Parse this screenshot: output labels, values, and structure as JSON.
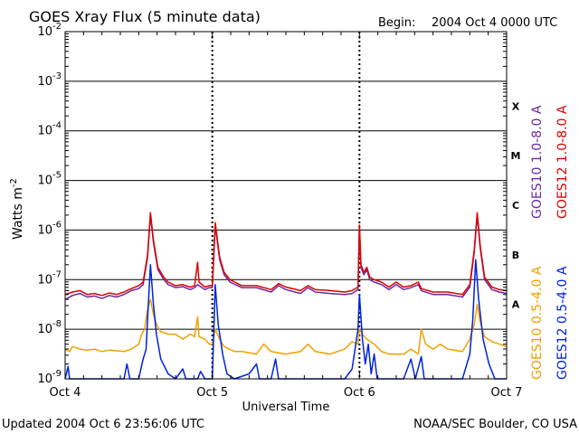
{
  "chart_data": {
    "type": "line",
    "title": "GOES Xray Flux (5 minute data)",
    "begin_label": "Begin:",
    "begin_value": "2004 Oct 4 0000 UTC",
    "xlabel": "Universal Time",
    "ylabel_base": "Watts m",
    "ylabel_exp": "-2",
    "yscale": "log",
    "ylim": [
      1e-09,
      0.01
    ],
    "xlim_days": [
      0,
      3
    ],
    "x_ticks": [
      {
        "day": 0,
        "label": "Oct 4"
      },
      {
        "day": 1,
        "label": "Oct 5"
      },
      {
        "day": 2,
        "label": "Oct 6"
      },
      {
        "day": 3,
        "label": "Oct 7"
      }
    ],
    "y_ticks": [
      {
        "exp": -2,
        "label": "-2"
      },
      {
        "exp": -3,
        "label": "-3"
      },
      {
        "exp": -4,
        "label": "-4"
      },
      {
        "exp": -5,
        "label": "-5"
      },
      {
        "exp": -6,
        "label": "-6"
      },
      {
        "exp": -7,
        "label": "-7"
      },
      {
        "exp": -8,
        "label": "-8"
      },
      {
        "exp": -9,
        "label": "-9"
      }
    ],
    "y_tick_base": "10",
    "flare_classes": [
      {
        "label": "X",
        "exp": -3.5
      },
      {
        "label": "M",
        "exp": -4.5
      },
      {
        "label": "C",
        "exp": -5.5
      },
      {
        "label": "B",
        "exp": -6.5
      },
      {
        "label": "A",
        "exp": -7.5
      }
    ],
    "grid": "horizontal lines at each decade, dashed day markers",
    "series": [
      {
        "name": "GOES12 1.0-8.0 A",
        "color": "#dd0000",
        "points": [
          [
            0.0,
            -7.3
          ],
          [
            0.05,
            -7.25
          ],
          [
            0.1,
            -7.22
          ],
          [
            0.15,
            -7.3
          ],
          [
            0.2,
            -7.28
          ],
          [
            0.25,
            -7.32
          ],
          [
            0.3,
            -7.27
          ],
          [
            0.35,
            -7.3
          ],
          [
            0.4,
            -7.25
          ],
          [
            0.45,
            -7.18
          ],
          [
            0.5,
            -7.12
          ],
          [
            0.53,
            -7.05
          ],
          [
            0.56,
            -6.5
          ],
          [
            0.58,
            -5.65
          ],
          [
            0.6,
            -6.2
          ],
          [
            0.63,
            -6.75
          ],
          [
            0.67,
            -6.95
          ],
          [
            0.7,
            -7.05
          ],
          [
            0.75,
            -7.12
          ],
          [
            0.8,
            -7.1
          ],
          [
            0.85,
            -7.15
          ],
          [
            0.88,
            -7.12
          ],
          [
            0.9,
            -6.65
          ],
          [
            0.91,
            -7.05
          ],
          [
            0.95,
            -7.15
          ],
          [
            0.98,
            -7.12
          ],
          [
            1.0,
            -7.12
          ],
          [
            1.02,
            -5.85
          ],
          [
            1.05,
            -6.55
          ],
          [
            1.08,
            -6.85
          ],
          [
            1.12,
            -7.0
          ],
          [
            1.2,
            -7.12
          ],
          [
            1.3,
            -7.12
          ],
          [
            1.4,
            -7.2
          ],
          [
            1.45,
            -7.08
          ],
          [
            1.5,
            -7.15
          ],
          [
            1.6,
            -7.22
          ],
          [
            1.65,
            -7.12
          ],
          [
            1.7,
            -7.2
          ],
          [
            1.8,
            -7.22
          ],
          [
            1.9,
            -7.25
          ],
          [
            1.95,
            -7.22
          ],
          [
            1.99,
            -7.15
          ],
          [
            2.0,
            -5.9
          ],
          [
            2.01,
            -6.7
          ],
          [
            2.03,
            -6.85
          ],
          [
            2.05,
            -6.75
          ],
          [
            2.07,
            -6.95
          ],
          [
            2.1,
            -7.0
          ],
          [
            2.15,
            -7.05
          ],
          [
            2.2,
            -7.15
          ],
          [
            2.25,
            -7.05
          ],
          [
            2.3,
            -7.15
          ],
          [
            2.35,
            -7.12
          ],
          [
            2.4,
            -7.05
          ],
          [
            2.42,
            -7.18
          ],
          [
            2.5,
            -7.25
          ],
          [
            2.6,
            -7.25
          ],
          [
            2.7,
            -7.3
          ],
          [
            2.75,
            -7.1
          ],
          [
            2.78,
            -6.4
          ],
          [
            2.8,
            -5.65
          ],
          [
            2.82,
            -6.3
          ],
          [
            2.85,
            -6.95
          ],
          [
            2.9,
            -7.15
          ],
          [
            2.95,
            -7.2
          ],
          [
            3.0,
            -7.22
          ]
        ]
      },
      {
        "name": "GOES10 1.0-8.0 A",
        "color": "#6a2aa0",
        "points": [
          [
            0.0,
            -7.4
          ],
          [
            0.05,
            -7.32
          ],
          [
            0.1,
            -7.28
          ],
          [
            0.15,
            -7.35
          ],
          [
            0.2,
            -7.33
          ],
          [
            0.25,
            -7.38
          ],
          [
            0.3,
            -7.32
          ],
          [
            0.35,
            -7.35
          ],
          [
            0.4,
            -7.3
          ],
          [
            0.45,
            -7.22
          ],
          [
            0.5,
            -7.18
          ],
          [
            0.53,
            -7.1
          ],
          [
            0.56,
            -6.55
          ],
          [
            0.58,
            -5.7
          ],
          [
            0.6,
            -6.25
          ],
          [
            0.63,
            -6.8
          ],
          [
            0.67,
            -7.0
          ],
          [
            0.7,
            -7.1
          ],
          [
            0.75,
            -7.16
          ],
          [
            0.8,
            -7.14
          ],
          [
            0.85,
            -7.2
          ],
          [
            0.88,
            -7.16
          ],
          [
            0.9,
            -7.1
          ],
          [
            0.95,
            -7.2
          ],
          [
            0.98,
            -7.16
          ],
          [
            1.0,
            -7.16
          ],
          [
            1.02,
            -5.9
          ],
          [
            1.05,
            -6.6
          ],
          [
            1.08,
            -6.9
          ],
          [
            1.12,
            -7.05
          ],
          [
            1.2,
            -7.16
          ],
          [
            1.3,
            -7.16
          ],
          [
            1.4,
            -7.25
          ],
          [
            1.45,
            -7.12
          ],
          [
            1.5,
            -7.2
          ],
          [
            1.6,
            -7.28
          ],
          [
            1.65,
            -7.16
          ],
          [
            1.7,
            -7.25
          ],
          [
            1.8,
            -7.28
          ],
          [
            1.9,
            -7.3
          ],
          [
            1.95,
            -7.28
          ],
          [
            1.99,
            -7.2
          ],
          [
            2.0,
            -5.95
          ],
          [
            2.01,
            -6.75
          ],
          [
            2.03,
            -6.9
          ],
          [
            2.05,
            -6.8
          ],
          [
            2.07,
            -7.0
          ],
          [
            2.1,
            -7.05
          ],
          [
            2.15,
            -7.1
          ],
          [
            2.2,
            -7.2
          ],
          [
            2.25,
            -7.1
          ],
          [
            2.3,
            -7.2
          ],
          [
            2.35,
            -7.16
          ],
          [
            2.4,
            -7.1
          ],
          [
            2.42,
            -7.22
          ],
          [
            2.5,
            -7.3
          ],
          [
            2.6,
            -7.3
          ],
          [
            2.7,
            -7.35
          ],
          [
            2.75,
            -7.15
          ],
          [
            2.78,
            -6.45
          ],
          [
            2.8,
            -5.7
          ],
          [
            2.82,
            -6.35
          ],
          [
            2.85,
            -7.0
          ],
          [
            2.9,
            -7.2
          ],
          [
            2.95,
            -7.25
          ],
          [
            3.0,
            -7.28
          ]
        ]
      },
      {
        "name": "GOES10 0.5-4.0 A",
        "color": "#f0a000",
        "points": [
          [
            0.0,
            -8.4
          ],
          [
            0.03,
            -8.45
          ],
          [
            0.05,
            -8.35
          ],
          [
            0.1,
            -8.4
          ],
          [
            0.15,
            -8.42
          ],
          [
            0.2,
            -8.4
          ],
          [
            0.25,
            -8.45
          ],
          [
            0.3,
            -8.42
          ],
          [
            0.4,
            -8.45
          ],
          [
            0.45,
            -8.4
          ],
          [
            0.5,
            -8.3
          ],
          [
            0.52,
            -8.1
          ],
          [
            0.54,
            -8.0
          ],
          [
            0.56,
            -7.6
          ],
          [
            0.58,
            -7.4
          ],
          [
            0.6,
            -7.7
          ],
          [
            0.62,
            -7.9
          ],
          [
            0.65,
            -8.05
          ],
          [
            0.7,
            -8.1
          ],
          [
            0.75,
            -8.1
          ],
          [
            0.8,
            -8.2
          ],
          [
            0.85,
            -8.1
          ],
          [
            0.88,
            -8.15
          ],
          [
            0.9,
            -7.75
          ],
          [
            0.91,
            -8.15
          ],
          [
            0.95,
            -8.2
          ],
          [
            0.98,
            -8.3
          ],
          [
            1.0,
            -8.3
          ],
          [
            1.02,
            -8.0
          ],
          [
            1.05,
            -8.2
          ],
          [
            1.08,
            -8.35
          ],
          [
            1.15,
            -8.45
          ],
          [
            1.2,
            -8.45
          ],
          [
            1.3,
            -8.5
          ],
          [
            1.35,
            -8.3
          ],
          [
            1.4,
            -8.45
          ],
          [
            1.5,
            -8.5
          ],
          [
            1.6,
            -8.45
          ],
          [
            1.65,
            -8.3
          ],
          [
            1.7,
            -8.45
          ],
          [
            1.8,
            -8.5
          ],
          [
            1.9,
            -8.4
          ],
          [
            1.95,
            -8.25
          ],
          [
            1.99,
            -8.3
          ],
          [
            2.0,
            -8.0
          ],
          [
            2.02,
            -8.1
          ],
          [
            2.05,
            -8.2
          ],
          [
            2.1,
            -8.3
          ],
          [
            2.15,
            -8.45
          ],
          [
            2.2,
            -8.5
          ],
          [
            2.3,
            -8.5
          ],
          [
            2.35,
            -8.4
          ],
          [
            2.4,
            -8.5
          ],
          [
            2.42,
            -8.0
          ],
          [
            2.45,
            -8.3
          ],
          [
            2.5,
            -8.4
          ],
          [
            2.55,
            -8.3
          ],
          [
            2.6,
            -8.4
          ],
          [
            2.7,
            -8.45
          ],
          [
            2.75,
            -8.2
          ],
          [
            2.78,
            -7.9
          ],
          [
            2.8,
            -7.5
          ],
          [
            2.82,
            -7.85
          ],
          [
            2.85,
            -8.15
          ],
          [
            2.9,
            -8.25
          ],
          [
            2.95,
            -8.3
          ],
          [
            3.0,
            -8.35
          ]
        ]
      },
      {
        "name": "GOES12 0.5-4.0 A",
        "color": "#0022dd",
        "points": [
          [
            0.0,
            -9.0
          ],
          [
            0.02,
            -8.75
          ],
          [
            0.03,
            -9.0
          ],
          [
            0.1,
            -9.0
          ],
          [
            0.2,
            -9.0
          ],
          [
            0.3,
            -9.0
          ],
          [
            0.4,
            -9.0
          ],
          [
            0.42,
            -8.7
          ],
          [
            0.44,
            -9.0
          ],
          [
            0.5,
            -9.0
          ],
          [
            0.53,
            -8.6
          ],
          [
            0.55,
            -8.4
          ],
          [
            0.56,
            -7.8
          ],
          [
            0.58,
            -6.7
          ],
          [
            0.6,
            -7.5
          ],
          [
            0.62,
            -8.1
          ],
          [
            0.65,
            -8.6
          ],
          [
            0.7,
            -8.9
          ],
          [
            0.75,
            -9.0
          ],
          [
            0.8,
            -8.8
          ],
          [
            0.82,
            -9.0
          ],
          [
            0.9,
            -9.0
          ],
          [
            0.92,
            -8.85
          ],
          [
            0.95,
            -9.0
          ],
          [
            1.0,
            -9.0
          ],
          [
            1.02,
            -7.1
          ],
          [
            1.04,
            -7.9
          ],
          [
            1.07,
            -8.5
          ],
          [
            1.1,
            -8.9
          ],
          [
            1.15,
            -9.0
          ],
          [
            1.25,
            -8.9
          ],
          [
            1.3,
            -8.7
          ],
          [
            1.32,
            -9.0
          ],
          [
            1.4,
            -9.0
          ],
          [
            1.43,
            -8.6
          ],
          [
            1.45,
            -9.0
          ],
          [
            1.55,
            -9.0
          ],
          [
            1.6,
            -9.0
          ],
          [
            1.7,
            -9.0
          ],
          [
            1.8,
            -9.0
          ],
          [
            1.9,
            -9.0
          ],
          [
            1.95,
            -8.8
          ],
          [
            1.99,
            -8.0
          ],
          [
            2.0,
            -7.3
          ],
          [
            2.02,
            -8.2
          ],
          [
            2.04,
            -8.7
          ],
          [
            2.06,
            -8.3
          ],
          [
            2.08,
            -8.9
          ],
          [
            2.1,
            -8.5
          ],
          [
            2.12,
            -9.0
          ],
          [
            2.2,
            -9.0
          ],
          [
            2.3,
            -9.0
          ],
          [
            2.35,
            -8.6
          ],
          [
            2.38,
            -9.0
          ],
          [
            2.42,
            -8.55
          ],
          [
            2.44,
            -9.0
          ],
          [
            2.5,
            -9.0
          ],
          [
            2.6,
            -9.0
          ],
          [
            2.7,
            -9.0
          ],
          [
            2.75,
            -8.5
          ],
          [
            2.77,
            -7.8
          ],
          [
            2.79,
            -6.6
          ],
          [
            2.81,
            -7.4
          ],
          [
            2.84,
            -8.2
          ],
          [
            2.88,
            -8.7
          ],
          [
            2.92,
            -9.0
          ],
          [
            3.0,
            -9.0
          ]
        ]
      }
    ]
  },
  "footer": {
    "updated": "Updated 2004 Oct  6 23:56:06 UTC",
    "source": "NOAA/SEC Boulder, CO USA"
  }
}
